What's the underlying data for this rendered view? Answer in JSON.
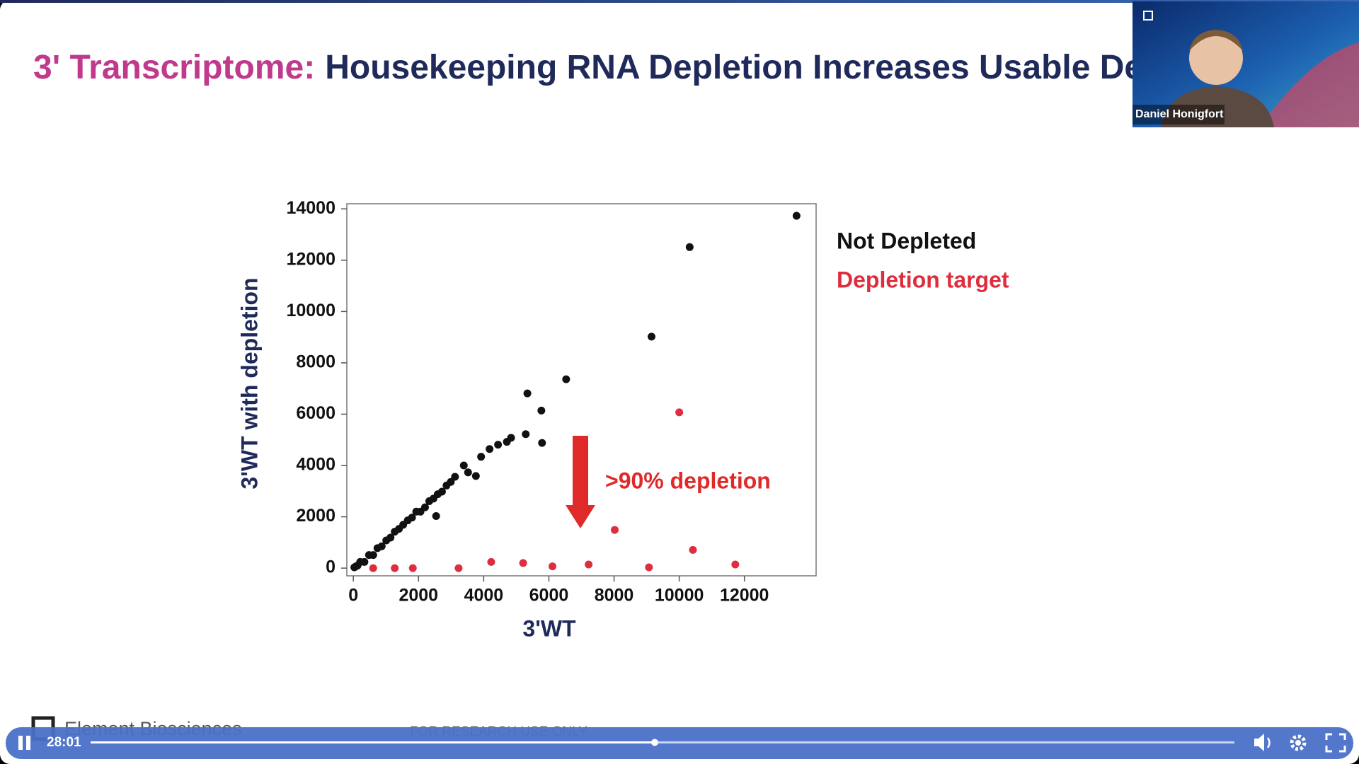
{
  "slide": {
    "title_prefix": "3' Transcriptome:",
    "title_main": "Housekeeping RNA Depletion Increases Usable De",
    "footer_brand": "Element Biosciences",
    "footer_note": "FOR RESEARCH USE ONLY"
  },
  "presenter": {
    "name": "Daniel Honigfort"
  },
  "player": {
    "time": "28:01"
  },
  "chart_data": {
    "type": "scatter",
    "xlabel": "3'WT",
    "ylabel": "3'WT with depletion",
    "annotation": ">90% depletion",
    "xlim": [
      -200,
      14200
    ],
    "ylim": [
      -300,
      14200
    ],
    "xticks": [
      0,
      2000,
      4000,
      6000,
      8000,
      10000,
      12000
    ],
    "yticks": [
      0,
      2000,
      4000,
      6000,
      8000,
      10000,
      12000,
      14000
    ],
    "series": [
      {
        "name": "Not Depleted",
        "color": "#111111",
        "x": [
          13600,
          10320,
          9150,
          6530,
          5340,
          5770,
          5290,
          5790,
          4840,
          4710,
          4440,
          4180,
          3920,
          3760,
          3520,
          3390,
          3120,
          2860,
          2540,
          2200,
          1930,
          1670,
          1400,
          1140,
          870,
          610,
          340,
          80,
          2590,
          2330,
          2060,
          1800,
          1530,
          1270,
          1010,
          740,
          480,
          210,
          130,
          30,
          2990,
          2720,
          2460
        ],
        "values": [
          13730,
          12510,
          9020,
          7360,
          6810,
          6140,
          5220,
          4880,
          5080,
          4920,
          4810,
          4640,
          4340,
          3590,
          3730,
          4000,
          3560,
          3220,
          2030,
          2370,
          2200,
          1860,
          1530,
          1190,
          850,
          510,
          240,
          70,
          2880,
          2610,
          2200,
          1970,
          1690,
          1420,
          1080,
          780,
          510,
          240,
          100,
          30,
          3360,
          2980,
          2710
        ]
      },
      {
        "name": "Depletion target",
        "color": "#de2e3e",
        "x": [
          608,
          1270,
          1825,
          3230,
          4230,
          5210,
          6110,
          7220,
          8020,
          9070,
          10000,
          10420,
          11720
        ],
        "values": [
          0,
          0,
          0,
          0,
          240,
          200,
          70,
          140,
          1490,
          30,
          6070,
          710,
          140
        ]
      }
    ]
  }
}
